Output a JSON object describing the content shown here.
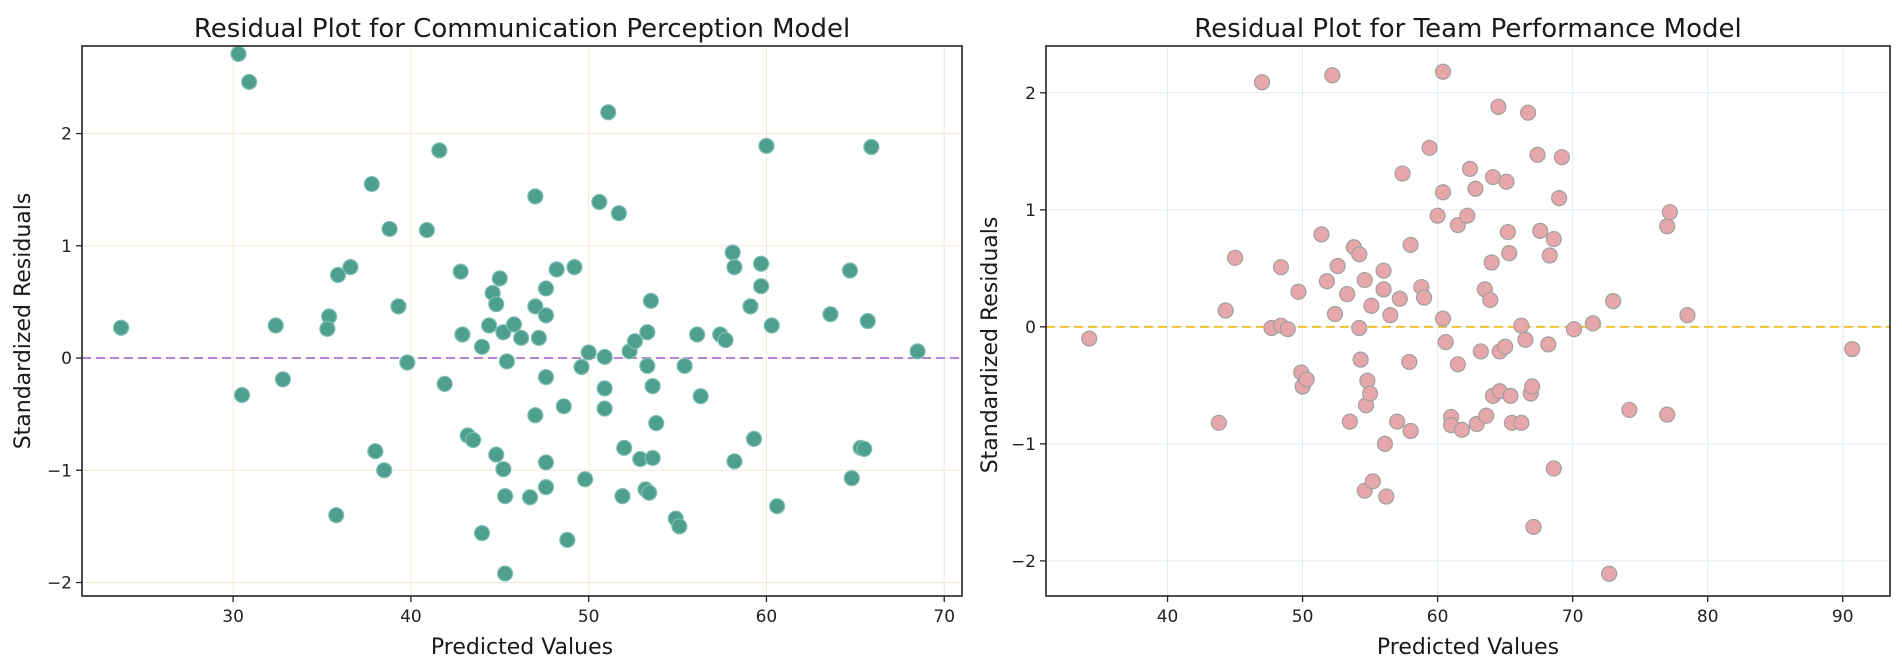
{
  "chart_data": [
    {
      "type": "scatter",
      "title": "Residual Plot for Communication Perception Model",
      "xlabel": "Predicted Values",
      "ylabel": "Standardized Residuals",
      "xlim": [
        21.5,
        71
      ],
      "ylim": [
        -2.12,
        2.78
      ],
      "xticks": [
        30,
        40,
        50,
        60,
        70
      ],
      "yticks": [
        -2,
        -1,
        0,
        1,
        2
      ],
      "xtick_labels": [
        "30",
        "40",
        "50",
        "60",
        "70"
      ],
      "ytick_labels": [
        "−2",
        "−1",
        "0",
        "1",
        "2"
      ],
      "grid": true,
      "grid_color": "#f3e8d6",
      "marker_color": "#4f9f8f",
      "marker_edge": "#7fbfb2",
      "reference_line": {
        "y": 0,
        "style": "dashed",
        "color": "#b987d8"
      },
      "points": [
        {
          "x": 23.7,
          "y": 0.27
        },
        {
          "x": 30.3,
          "y": 2.71
        },
        {
          "x": 30.9,
          "y": 2.46
        },
        {
          "x": 30.5,
          "y": -0.33
        },
        {
          "x": 32.4,
          "y": 0.29
        },
        {
          "x": 32.8,
          "y": -0.19
        },
        {
          "x": 35.4,
          "y": 0.37
        },
        {
          "x": 35.3,
          "y": 0.26
        },
        {
          "x": 35.9,
          "y": 0.74
        },
        {
          "x": 36.6,
          "y": 0.81
        },
        {
          "x": 35.8,
          "y": -1.4
        },
        {
          "x": 37.8,
          "y": 1.55
        },
        {
          "x": 38.0,
          "y": -0.83
        },
        {
          "x": 38.5,
          "y": -1.0
        },
        {
          "x": 38.8,
          "y": 1.15
        },
        {
          "x": 39.3,
          "y": 0.46
        },
        {
          "x": 39.8,
          "y": -0.04
        },
        {
          "x": 40.9,
          "y": 1.14
        },
        {
          "x": 41.6,
          "y": 1.85
        },
        {
          "x": 41.9,
          "y": -0.23
        },
        {
          "x": 42.8,
          "y": 0.77
        },
        {
          "x": 42.9,
          "y": 0.21
        },
        {
          "x": 43.2,
          "y": -0.69
        },
        {
          "x": 43.5,
          "y": -0.73
        },
        {
          "x": 44.0,
          "y": 0.1
        },
        {
          "x": 44.0,
          "y": -1.56
        },
        {
          "x": 44.4,
          "y": 0.29
        },
        {
          "x": 44.6,
          "y": 0.58
        },
        {
          "x": 44.8,
          "y": 0.48
        },
        {
          "x": 45.0,
          "y": 0.71
        },
        {
          "x": 44.8,
          "y": -0.86
        },
        {
          "x": 45.2,
          "y": 0.23
        },
        {
          "x": 45.2,
          "y": -0.99
        },
        {
          "x": 45.4,
          "y": -0.03
        },
        {
          "x": 45.3,
          "y": -1.23
        },
        {
          "x": 45.3,
          "y": -1.92
        },
        {
          "x": 45.8,
          "y": 0.3
        },
        {
          "x": 46.2,
          "y": 0.18
        },
        {
          "x": 46.7,
          "y": -1.24
        },
        {
          "x": 47.0,
          "y": 0.46
        },
        {
          "x": 47.0,
          "y": 1.44
        },
        {
          "x": 47.2,
          "y": 0.18
        },
        {
          "x": 47.0,
          "y": -0.51
        },
        {
          "x": 47.6,
          "y": 0.38
        },
        {
          "x": 47.6,
          "y": 0.62
        },
        {
          "x": 47.6,
          "y": -0.17
        },
        {
          "x": 47.6,
          "y": -0.93
        },
        {
          "x": 47.6,
          "y": -1.15
        },
        {
          "x": 48.2,
          "y": 0.79
        },
        {
          "x": 48.6,
          "y": -0.43
        },
        {
          "x": 48.8,
          "y": -1.62
        },
        {
          "x": 49.2,
          "y": 0.81
        },
        {
          "x": 49.6,
          "y": -0.08
        },
        {
          "x": 49.8,
          "y": -1.08
        },
        {
          "x": 50.0,
          "y": 0.05
        },
        {
          "x": 50.6,
          "y": 1.39
        },
        {
          "x": 50.9,
          "y": 0.01
        },
        {
          "x": 50.9,
          "y": -0.27
        },
        {
          "x": 50.9,
          "y": -0.45
        },
        {
          "x": 51.1,
          "y": 2.19
        },
        {
          "x": 51.7,
          "y": 1.29
        },
        {
          "x": 51.9,
          "y": -1.23
        },
        {
          "x": 52.0,
          "y": -0.8
        },
        {
          "x": 52.3,
          "y": 0.06
        },
        {
          "x": 52.6,
          "y": 0.15
        },
        {
          "x": 52.9,
          "y": -0.9
        },
        {
          "x": 53.2,
          "y": -1.17
        },
        {
          "x": 53.3,
          "y": 0.23
        },
        {
          "x": 53.3,
          "y": -0.07
        },
        {
          "x": 53.4,
          "y": -1.2
        },
        {
          "x": 53.5,
          "y": 0.51
        },
        {
          "x": 53.6,
          "y": -0.25
        },
        {
          "x": 53.6,
          "y": -0.89
        },
        {
          "x": 53.8,
          "y": -0.58
        },
        {
          "x": 54.9,
          "y": -1.43
        },
        {
          "x": 55.1,
          "y": -1.5
        },
        {
          "x": 55.4,
          "y": -0.07
        },
        {
          "x": 56.1,
          "y": 0.21
        },
        {
          "x": 56.3,
          "y": -0.34
        },
        {
          "x": 57.4,
          "y": 0.21
        },
        {
          "x": 57.7,
          "y": 0.16
        },
        {
          "x": 58.1,
          "y": 0.94
        },
        {
          "x": 58.2,
          "y": 0.81
        },
        {
          "x": 58.2,
          "y": -0.92
        },
        {
          "x": 59.1,
          "y": 0.46
        },
        {
          "x": 59.3,
          "y": -0.72
        },
        {
          "x": 59.7,
          "y": 0.84
        },
        {
          "x": 59.7,
          "y": 0.64
        },
        {
          "x": 60.0,
          "y": 1.89
        },
        {
          "x": 60.3,
          "y": 0.29
        },
        {
          "x": 60.6,
          "y": -1.32
        },
        {
          "x": 63.6,
          "y": 0.39
        },
        {
          "x": 64.7,
          "y": 0.78
        },
        {
          "x": 64.8,
          "y": -1.07
        },
        {
          "x": 65.3,
          "y": -0.8
        },
        {
          "x": 65.5,
          "y": -0.81
        },
        {
          "x": 65.7,
          "y": 0.33
        },
        {
          "x": 65.9,
          "y": 1.88
        },
        {
          "x": 68.5,
          "y": 0.06
        }
      ]
    },
    {
      "type": "scatter",
      "title": "Residual Plot for Team Performance Model",
      "xlabel": "Predicted Values",
      "ylabel": "Standardized Residuals",
      "xlim": [
        31,
        93.5
      ],
      "ylim": [
        -2.3,
        2.4
      ],
      "xticks": [
        40,
        50,
        60,
        70,
        80,
        90
      ],
      "yticks": [
        -2,
        -1,
        0,
        1,
        2
      ],
      "xtick_labels": [
        "40",
        "50",
        "60",
        "70",
        "80",
        "90"
      ],
      "ytick_labels": [
        "−2",
        "−1",
        "0",
        "1",
        "2"
      ],
      "grid": true,
      "grid_color": "#dcecf3",
      "marker_color": "#e5a7aa",
      "marker_edge": "#a0a0a0",
      "reference_line": {
        "y": 0,
        "style": "dashed",
        "color": "#f0c330"
      },
      "points": [
        {
          "x": 34.2,
          "y": -0.1
        },
        {
          "x": 43.8,
          "y": -0.82
        },
        {
          "x": 44.3,
          "y": 0.14
        },
        {
          "x": 45.0,
          "y": 0.59
        },
        {
          "x": 47.0,
          "y": 2.09
        },
        {
          "x": 47.7,
          "y": -0.01
        },
        {
          "x": 48.4,
          "y": 0.51
        },
        {
          "x": 48.4,
          "y": 0.01
        },
        {
          "x": 48.9,
          "y": -0.02
        },
        {
          "x": 49.7,
          "y": 0.3
        },
        {
          "x": 49.9,
          "y": -0.39
        },
        {
          "x": 50.0,
          "y": -0.51
        },
        {
          "x": 50.3,
          "y": -0.45
        },
        {
          "x": 51.4,
          "y": 0.79
        },
        {
          "x": 51.8,
          "y": 0.39
        },
        {
          "x": 52.2,
          "y": 2.15
        },
        {
          "x": 52.4,
          "y": 0.11
        },
        {
          "x": 52.6,
          "y": 0.52
        },
        {
          "x": 53.3,
          "y": 0.28
        },
        {
          "x": 53.5,
          "y": -0.81
        },
        {
          "x": 53.8,
          "y": 0.68
        },
        {
          "x": 54.2,
          "y": 0.62
        },
        {
          "x": 54.2,
          "y": -0.01
        },
        {
          "x": 54.3,
          "y": -0.28
        },
        {
          "x": 54.6,
          "y": -1.4
        },
        {
          "x": 54.6,
          "y": 0.4
        },
        {
          "x": 54.7,
          "y": -0.67
        },
        {
          "x": 54.8,
          "y": -0.46
        },
        {
          "x": 55.0,
          "y": -0.57
        },
        {
          "x": 55.1,
          "y": 0.18
        },
        {
          "x": 55.2,
          "y": -1.32
        },
        {
          "x": 56.0,
          "y": 0.48
        },
        {
          "x": 56.0,
          "y": 0.32
        },
        {
          "x": 56.1,
          "y": -1.0
        },
        {
          "x": 56.2,
          "y": -1.45
        },
        {
          "x": 56.5,
          "y": 0.1
        },
        {
          "x": 57.0,
          "y": -0.81
        },
        {
          "x": 57.2,
          "y": 0.24
        },
        {
          "x": 57.4,
          "y": 1.31
        },
        {
          "x": 57.9,
          "y": -0.3
        },
        {
          "x": 58.0,
          "y": -0.89
        },
        {
          "x": 58.0,
          "y": 0.7
        },
        {
          "x": 58.8,
          "y": 0.34
        },
        {
          "x": 59.0,
          "y": 0.25
        },
        {
          "x": 59.4,
          "y": 1.53
        },
        {
          "x": 60.0,
          "y": 0.95
        },
        {
          "x": 60.4,
          "y": 2.18
        },
        {
          "x": 60.4,
          "y": 1.15
        },
        {
          "x": 60.4,
          "y": 0.07
        },
        {
          "x": 60.6,
          "y": -0.13
        },
        {
          "x": 61.0,
          "y": -0.77
        },
        {
          "x": 61.0,
          "y": -0.84
        },
        {
          "x": 61.5,
          "y": -0.32
        },
        {
          "x": 61.5,
          "y": 0.87
        },
        {
          "x": 61.8,
          "y": -0.88
        },
        {
          "x": 62.2,
          "y": 0.95
        },
        {
          "x": 62.4,
          "y": 1.35
        },
        {
          "x": 62.8,
          "y": 1.18
        },
        {
          "x": 62.9,
          "y": -0.83
        },
        {
          "x": 63.2,
          "y": -0.21
        },
        {
          "x": 63.5,
          "y": 0.32
        },
        {
          "x": 63.6,
          "y": -0.76
        },
        {
          "x": 63.9,
          "y": 0.23
        },
        {
          "x": 64.0,
          "y": 0.55
        },
        {
          "x": 64.1,
          "y": 1.28
        },
        {
          "x": 64.1,
          "y": -0.59
        },
        {
          "x": 64.5,
          "y": 1.88
        },
        {
          "x": 64.6,
          "y": -0.21
        },
        {
          "x": 64.6,
          "y": -0.55
        },
        {
          "x": 65.0,
          "y": -0.17
        },
        {
          "x": 65.1,
          "y": 1.24
        },
        {
          "x": 65.2,
          "y": 0.81
        },
        {
          "x": 65.3,
          "y": 0.63
        },
        {
          "x": 65.4,
          "y": -0.59
        },
        {
          "x": 65.5,
          "y": -0.82
        },
        {
          "x": 66.2,
          "y": 0.01
        },
        {
          "x": 66.2,
          "y": -0.82
        },
        {
          "x": 66.5,
          "y": -0.11
        },
        {
          "x": 66.7,
          "y": 1.83
        },
        {
          "x": 66.9,
          "y": -0.57
        },
        {
          "x": 67.0,
          "y": -0.51
        },
        {
          "x": 67.1,
          "y": -1.71
        },
        {
          "x": 67.4,
          "y": 1.47
        },
        {
          "x": 67.6,
          "y": 0.82
        },
        {
          "x": 68.2,
          "y": -0.15
        },
        {
          "x": 68.3,
          "y": 0.61
        },
        {
          "x": 68.6,
          "y": 0.75
        },
        {
          "x": 68.6,
          "y": -1.21
        },
        {
          "x": 69.0,
          "y": 1.1
        },
        {
          "x": 69.2,
          "y": 1.45
        },
        {
          "x": 70.1,
          "y": -0.02
        },
        {
          "x": 71.5,
          "y": 0.03
        },
        {
          "x": 72.7,
          "y": -2.11
        },
        {
          "x": 73.0,
          "y": 0.22
        },
        {
          "x": 74.2,
          "y": -0.71
        },
        {
          "x": 77.0,
          "y": 0.86
        },
        {
          "x": 77.2,
          "y": 0.98
        },
        {
          "x": 77.0,
          "y": -0.75
        },
        {
          "x": 78.5,
          "y": 0.1
        },
        {
          "x": 90.7,
          "y": -0.19
        }
      ]
    }
  ]
}
